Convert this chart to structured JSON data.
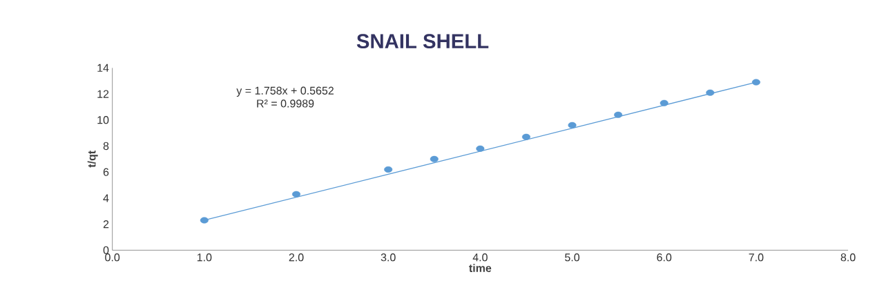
{
  "chart_data": {
    "type": "scatter",
    "title": "SNAIL SHELL",
    "xlabel": "time",
    "ylabel": "t/qt",
    "x": [
      1.0,
      2.0,
      3.0,
      3.5,
      4.0,
      4.5,
      5.0,
      5.5,
      6.0,
      6.5,
      7.0
    ],
    "series": [
      {
        "color": "#5b9bd5",
        "values": [
          2.3,
          4.3,
          6.2,
          7.0,
          7.8,
          8.7,
          9.6,
          10.4,
          11.3,
          12.1,
          12.9
        ]
      },
      {
        "type": "line",
        "color": "#5b9bd5",
        "marker": "none",
        "line_style": "solid",
        "x": [
          1.0,
          7.0
        ],
        "values": [
          2.3,
          12.9
        ]
      }
    ],
    "annotations": [
      "y = 1.758x + 0.5652",
      "R² = 0.9989"
    ],
    "xlim": [
      0,
      8
    ],
    "ylim": [
      0,
      14
    ],
    "xticks": [
      {
        "value": 0,
        "label": "0.0"
      },
      {
        "value": 1,
        "label": "1.0"
      },
      {
        "value": 2,
        "label": "2.0"
      },
      {
        "value": 3,
        "label": "3.0"
      },
      {
        "value": 4,
        "label": "4.0"
      },
      {
        "value": 5,
        "label": "5.0"
      },
      {
        "value": 6,
        "label": "6.0"
      },
      {
        "value": 7,
        "label": "7.0"
      },
      {
        "value": 8,
        "label": "8.0"
      }
    ],
    "yticks": [
      0,
      2,
      4,
      6,
      8,
      10,
      12,
      14
    ],
    "marker": "circle",
    "grid": false
  }
}
